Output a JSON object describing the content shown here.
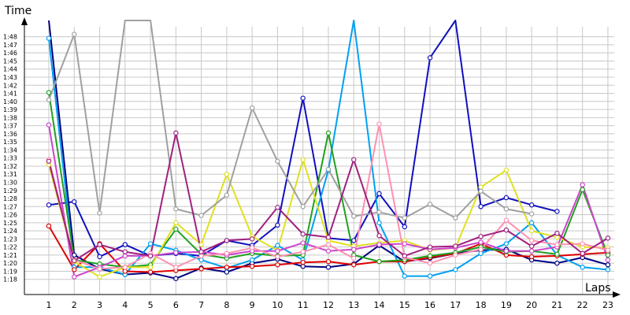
{
  "chart_data": {
    "type": "line",
    "xlabel": "Laps",
    "ylabel": "Time",
    "x": [
      1,
      2,
      3,
      4,
      5,
      6,
      7,
      8,
      9,
      10,
      11,
      12,
      13,
      14,
      15,
      16,
      17,
      18,
      19,
      20,
      21,
      22,
      23
    ],
    "y_ticks": [
      "1:18",
      "1:19",
      "1:20",
      "1:21",
      "1:22",
      "1:23",
      "1:24",
      "1:25",
      "1:26",
      "1:27",
      "1:28",
      "1:29",
      "1:30",
      "1:31",
      "1:32",
      "1:33",
      "1:34",
      "1:35",
      "1:36",
      "1:37",
      "1:38",
      "1:39",
      "1:40",
      "1:41",
      "1:42",
      "1:43",
      "1:44",
      "1:45",
      "1:46",
      "1:47",
      "1:48"
    ],
    "ylim_seconds": [
      77,
      110
    ],
    "grid": true,
    "series": [
      {
        "color": "#1010c0",
        "values": [
          87.2,
          87.6,
          80.8,
          82.3,
          80.9,
          81.2,
          80.9,
          82.8,
          82.2,
          84.7,
          100.4,
          83.1,
          82.8,
          88.6,
          84.5,
          105.4,
          115,
          87.0,
          88.1,
          87.2,
          86.4,
          null,
          null
        ]
      },
      {
        "color": "#000080",
        "values": [
          125,
          81.0,
          79.3,
          78.6,
          78.8,
          78.1,
          79.4,
          78.9,
          80.0,
          80.5,
          79.6,
          79.5,
          79.9,
          82.2,
          80.2,
          80.6,
          81.2,
          81.6,
          81.7,
          80.4,
          80.0,
          80.7,
          79.8
        ]
      },
      {
        "color": "#00a0f0",
        "values": [
          107.8,
          79.5,
          79.5,
          78.6,
          82.4,
          81.6,
          80.4,
          79.4,
          80.4,
          82.2,
          80.4,
          91.5,
          110.3,
          85.0,
          78.4,
          78.4,
          79.2,
          81.2,
          82.4,
          85.0,
          81.0,
          79.5,
          79.2
        ]
      },
      {
        "color": "#dd0000",
        "values": [
          84.6,
          79.2,
          82.4,
          79.0,
          78.9,
          79.1,
          79.3,
          79.5,
          79.6,
          79.8,
          80.1,
          80.2,
          79.8,
          80.2,
          80.2,
          80.7,
          81.2,
          82.4,
          81.0,
          80.8,
          80.9,
          81.1,
          81.3
        ]
      },
      {
        "color": "#20a020",
        "values": [
          101.1,
          80.4,
          79.9,
          79.5,
          79.8,
          84.2,
          81.1,
          80.6,
          81.2,
          80.9,
          81.0,
          96.1,
          81.0,
          80.2,
          80.4,
          80.9,
          81.3,
          82.0,
          81.4,
          81.5,
          81.1,
          89.1,
          81.0
        ]
      },
      {
        "color": "#e0e020",
        "values": [
          92.2,
          80.2,
          78.3,
          79.5,
          79.5,
          85.0,
          82.3,
          91.0,
          83.3,
          81.6,
          92.8,
          82.8,
          82.1,
          82.5,
          82.8,
          81.6,
          81.9,
          89.4,
          91.5,
          84.0,
          83.2,
          82.0,
          81.9
        ]
      },
      {
        "color": "#a0a0a0",
        "values": [
          100.2,
          108.3,
          86.2,
          125,
          125,
          86.7,
          85.9,
          88.4,
          99.2,
          92.6,
          87.0,
          91.6,
          85.8,
          86.3,
          85.6,
          87.3,
          85.6,
          88.9,
          86.7,
          86.1,
          null,
          null,
          null
        ]
      },
      {
        "color": "#cc44cc",
        "values": [
          97.1,
          78.3,
          79.5,
          80.9,
          80.9,
          81.3,
          81.4,
          81.0,
          81.5,
          81.5,
          82.5,
          81.5,
          81.7,
          82.3,
          82.4,
          81.7,
          81.9,
          82.6,
          81.5,
          81.5,
          82.0,
          89.7,
          80.4
        ]
      },
      {
        "color": "#ff90b0",
        "values": [
          92.8,
          80.4,
          79.3,
          79.5,
          81.2,
          79.5,
          80.9,
          81.2,
          81.9,
          80.8,
          81.4,
          82.3,
          80.6,
          97.2,
          80.7,
          80.0,
          81.0,
          81.7,
          85.3,
          82.8,
          82.3,
          82.4,
          81.6
        ]
      },
      {
        "color": "#a02080",
        "values": [
          92.6,
          80.3,
          82.3,
          81.4,
          80.9,
          96.1,
          81.4,
          82.8,
          83.0,
          86.9,
          83.6,
          83.2,
          92.8,
          83.4,
          80.9,
          82.0,
          82.1,
          83.3,
          84.1,
          82.1,
          83.7,
          81.2,
          83.1
        ]
      }
    ]
  }
}
